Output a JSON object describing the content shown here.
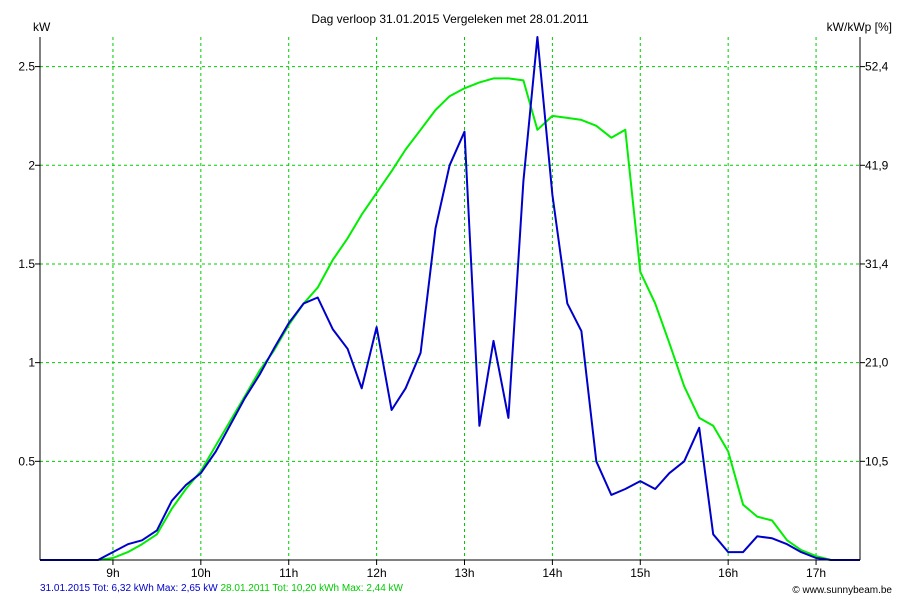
{
  "header": {
    "title": "Dag  verloop 31.01.2015   Vergeleken met 28.01.2011",
    "y_left_label": "kW",
    "y_right_label": "kW/kWp [%]"
  },
  "footer": {
    "series1": "31.01.2015 Tot: 6,32 kWh Max: 2,65 kW",
    "series2": "28.01.2011 Tot: 10,20 kWh Max: 2,44 kW",
    "credit": "© www.sunnybeam.be"
  },
  "colors": {
    "series1": "#0000cc",
    "series2": "#00ee00",
    "grid": "#00cc00",
    "axis": "#000000"
  },
  "chart_data": {
    "type": "line",
    "xlim": [
      8.17,
      17.5
    ],
    "ylim": [
      0,
      2.65
    ],
    "x_ticks": [
      9,
      10,
      11,
      12,
      13,
      14,
      15,
      16,
      17
    ],
    "x_tick_labels": [
      "9h",
      "10h",
      "11h",
      "12h",
      "13h",
      "14h",
      "15h",
      "16h",
      "17h"
    ],
    "y_ticks": [
      0.5,
      1,
      1.5,
      2,
      2.5
    ],
    "y_tick_labels": [
      "0.5",
      "1",
      "1.5",
      "2",
      "2.5"
    ],
    "y2_tick_labels": [
      "10,5",
      "21,0",
      "31,4",
      "41,9",
      "52,4"
    ],
    "grid": true,
    "series": [
      {
        "name": "31.01.2015",
        "x": [
          8.17,
          8.5,
          8.83,
          9.0,
          9.17,
          9.33,
          9.5,
          9.67,
          9.83,
          10.0,
          10.17,
          10.33,
          10.5,
          10.67,
          10.83,
          11.0,
          11.17,
          11.33,
          11.5,
          11.67,
          11.83,
          12.0,
          12.17,
          12.33,
          12.5,
          12.67,
          12.83,
          13.0,
          13.17,
          13.33,
          13.5,
          13.67,
          13.83,
          14.0,
          14.17,
          14.33,
          14.5,
          14.67,
          14.83,
          15.0,
          15.17,
          15.33,
          15.5,
          15.67,
          15.83,
          16.0,
          16.17,
          16.33,
          16.5,
          16.67,
          16.83,
          17.0,
          17.17,
          17.33,
          17.5
        ],
        "y": [
          0,
          0,
          0,
          0.04,
          0.08,
          0.1,
          0.15,
          0.3,
          0.38,
          0.44,
          0.55,
          0.68,
          0.82,
          0.94,
          1.07,
          1.2,
          1.3,
          1.33,
          1.17,
          1.07,
          0.87,
          1.18,
          0.76,
          0.87,
          1.05,
          1.68,
          2.0,
          2.17,
          0.68,
          1.11,
          0.72,
          1.92,
          2.65,
          1.85,
          1.3,
          1.16,
          0.5,
          0.33,
          0.36,
          0.4,
          0.36,
          0.44,
          0.5,
          0.67,
          0.13,
          0.04,
          0.04,
          0.12,
          0.11,
          0.08,
          0.04,
          0.01,
          0,
          0,
          0
        ]
      },
      {
        "name": "28.01.2011",
        "x": [
          8.17,
          8.5,
          8.83,
          9.0,
          9.17,
          9.33,
          9.5,
          9.67,
          9.83,
          10.0,
          10.17,
          10.33,
          10.5,
          10.67,
          10.83,
          11.0,
          11.17,
          11.33,
          11.5,
          11.67,
          11.83,
          12.0,
          12.17,
          12.33,
          12.5,
          12.67,
          12.83,
          13.0,
          13.17,
          13.33,
          13.5,
          13.67,
          13.83,
          14.0,
          14.17,
          14.33,
          14.5,
          14.67,
          14.83,
          15.0,
          15.17,
          15.33,
          15.5,
          15.67,
          15.83,
          16.0,
          16.17,
          16.33,
          16.5,
          16.67,
          16.83,
          17.0,
          17.17,
          17.33,
          17.5
        ],
        "y": [
          0,
          0,
          0,
          0.01,
          0.04,
          0.08,
          0.13,
          0.26,
          0.36,
          0.45,
          0.58,
          0.7,
          0.83,
          0.96,
          1.06,
          1.19,
          1.3,
          1.38,
          1.52,
          1.63,
          1.75,
          1.86,
          1.97,
          2.08,
          2.18,
          2.28,
          2.35,
          2.39,
          2.42,
          2.44,
          2.44,
          2.43,
          2.18,
          2.25,
          2.24,
          2.23,
          2.2,
          2.14,
          2.18,
          1.46,
          1.3,
          1.1,
          0.88,
          0.72,
          0.68,
          0.55,
          0.28,
          0.22,
          0.2,
          0.1,
          0.05,
          0.02,
          0,
          0,
          0
        ]
      }
    ]
  }
}
